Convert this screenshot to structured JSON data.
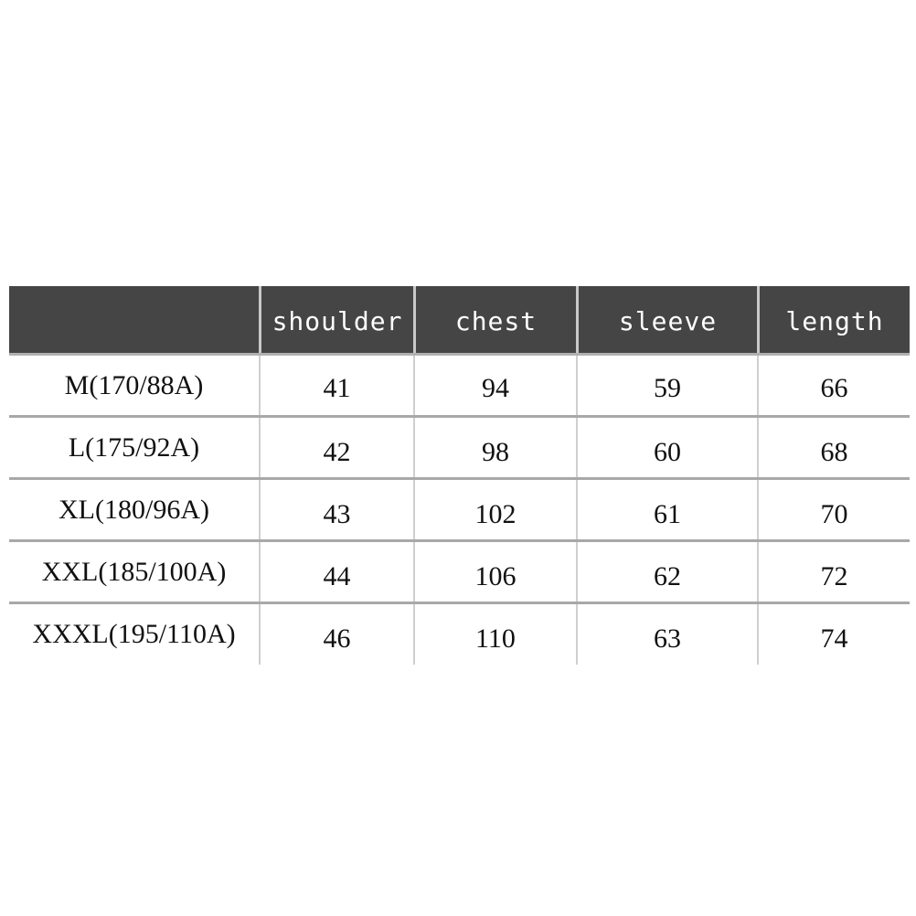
{
  "table": {
    "headers": [
      "",
      "shoulder",
      "chest",
      "sleeve",
      "length"
    ],
    "rows": [
      [
        "M(170/88A)",
        "41",
        "94",
        "59",
        "66"
      ],
      [
        "L(175/92A)",
        "42",
        "98",
        "60",
        "68"
      ],
      [
        "XL(180/96A)",
        "43",
        "102",
        "61",
        "70"
      ],
      [
        "XXL(185/100A)",
        "44",
        "106",
        "62",
        "72"
      ],
      [
        "XXXL(195/110A)",
        "46",
        "110",
        "63",
        "74"
      ]
    ],
    "colors": {
      "header_bg": "#454545",
      "header_text": "#ffffff"
    }
  }
}
